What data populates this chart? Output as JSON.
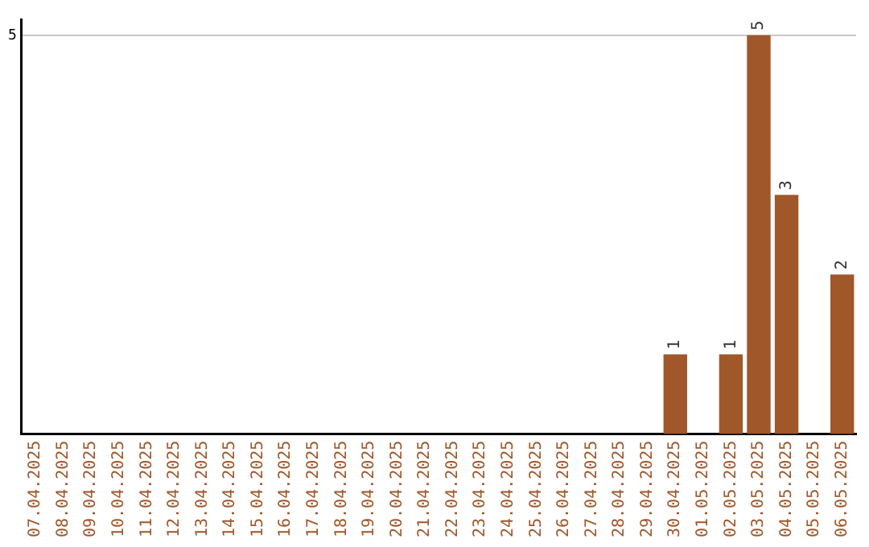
{
  "chart_data": {
    "type": "bar",
    "categories": [
      "07.04.2025",
      "08.04.2025",
      "09.04.2025",
      "10.04.2025",
      "11.04.2025",
      "12.04.2025",
      "13.04.2025",
      "14.04.2025",
      "15.04.2025",
      "16.04.2025",
      "17.04.2025",
      "18.04.2025",
      "19.04.2025",
      "20.04.2025",
      "21.04.2025",
      "22.04.2025",
      "23.04.2025",
      "24.04.2025",
      "25.04.2025",
      "26.04.2025",
      "27.04.2025",
      "28.04.2025",
      "29.04.2025",
      "30.04.2025",
      "01.05.2025",
      "02.05.2025",
      "03.05.2025",
      "04.05.2025",
      "05.05.2025",
      "06.05.2025"
    ],
    "values": [
      null,
      null,
      null,
      null,
      null,
      null,
      null,
      null,
      null,
      null,
      null,
      null,
      null,
      null,
      null,
      null,
      null,
      null,
      null,
      null,
      null,
      null,
      null,
      1,
      null,
      1,
      5,
      3,
      null,
      2
    ],
    "color": "#a0572a",
    "ylim": [
      0,
      5.2
    ],
    "yticks": [
      5
    ],
    "grid": "y",
    "data_labels": true,
    "legend": false
  }
}
